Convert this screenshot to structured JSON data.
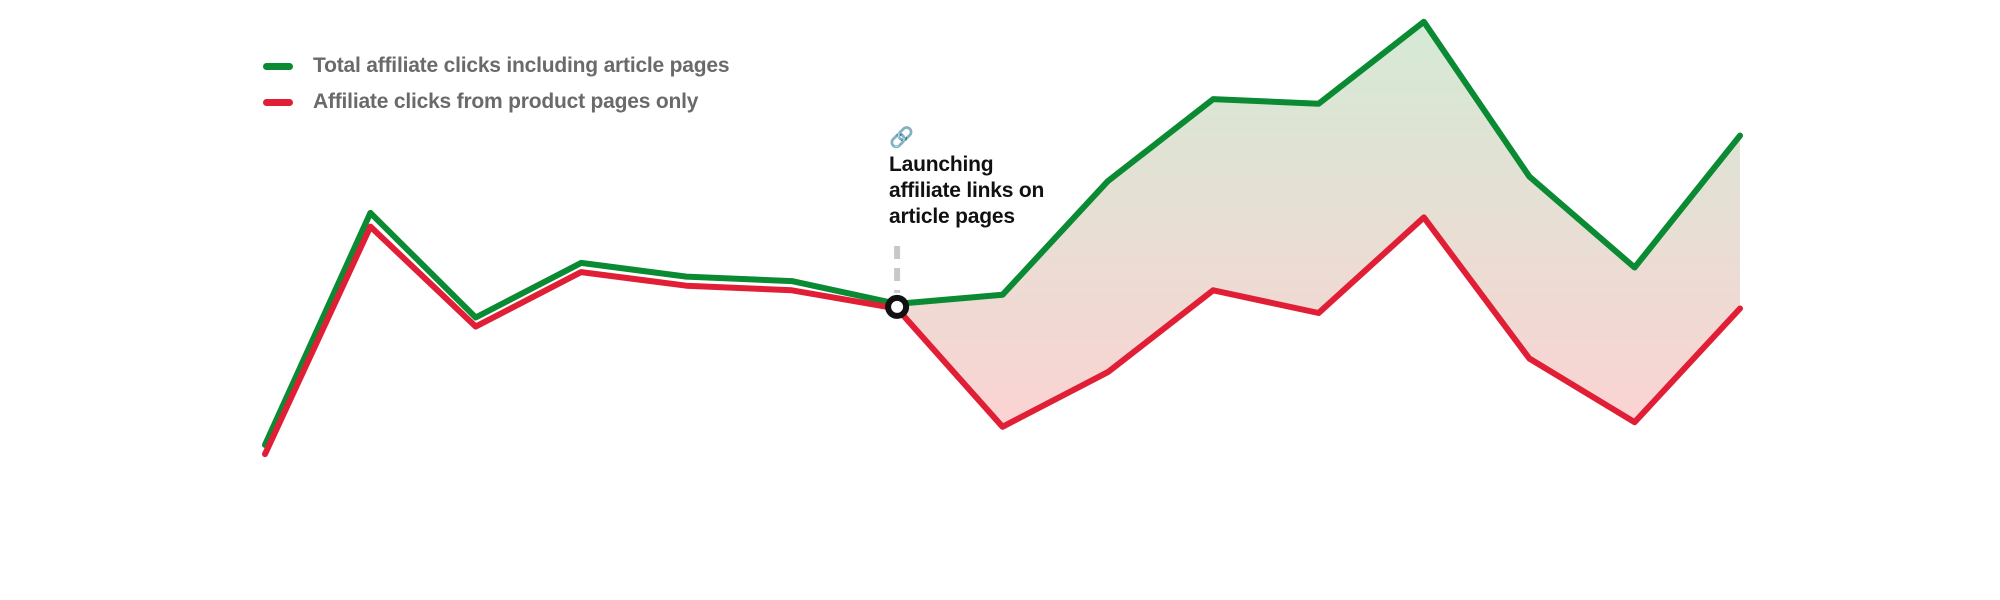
{
  "chart_data": {
    "type": "line",
    "title": "",
    "xlabel": "",
    "ylabel": "",
    "x": [
      0,
      1,
      2,
      3,
      4,
      5,
      6,
      7,
      8,
      9,
      10,
      11,
      12,
      13,
      14
    ],
    "ylim": [
      0,
      100
    ],
    "grid": false,
    "legend_position": "top-left",
    "series": [
      {
        "name": "Total affiliate clicks including article pages",
        "color": "#0a8a32",
        "values": [
          11,
          62,
          39,
          51,
          48,
          47,
          42,
          44,
          69,
          87,
          86,
          104,
          70,
          50,
          79
        ]
      },
      {
        "name": "Affiliate clicks from product pages only",
        "color": "#e01f36",
        "values": [
          9,
          59,
          37,
          49,
          46,
          45,
          41,
          15,
          27,
          45,
          40,
          61,
          30,
          16,
          41
        ]
      }
    ],
    "fill_between": {
      "from_index": 6,
      "top_color": "#d4ead4",
      "bottom_color": "#fbd3d3"
    },
    "annotation": {
      "at_index": 6,
      "icon": "link-icon",
      "text": "Launching affiliate links on article pages",
      "marker_color": "#111111",
      "line_color": "#c8c8c8"
    }
  }
}
